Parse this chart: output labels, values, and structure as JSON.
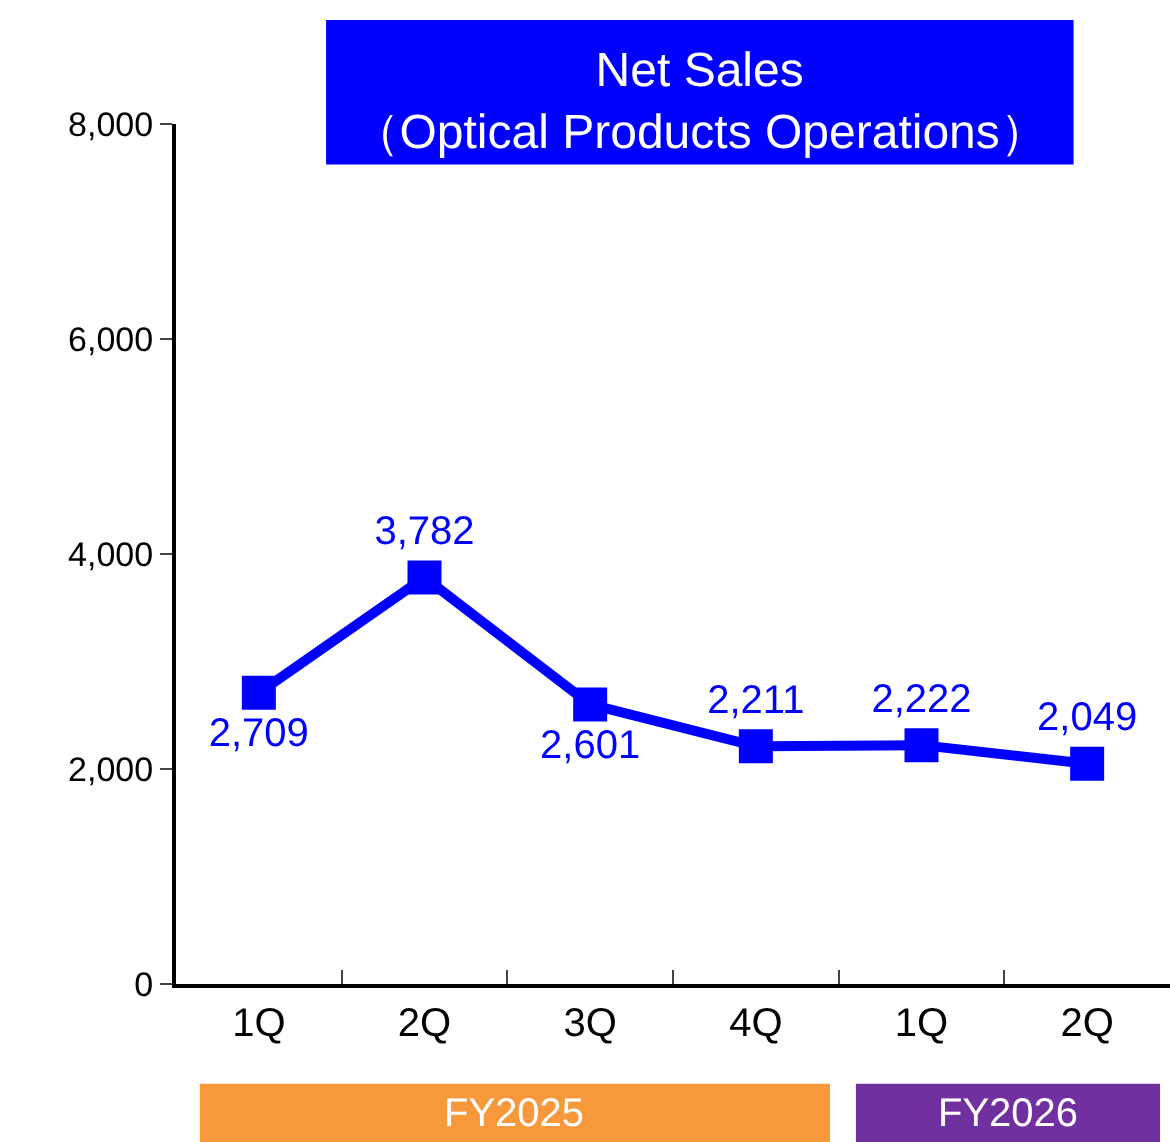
{
  "chart_data": {
    "type": "line",
    "title": "Net Sales",
    "subtitle": "（Optical Products Operations）",
    "categories": [
      "1Q",
      "2Q",
      "3Q",
      "4Q",
      "1Q",
      "2Q"
    ],
    "series": [
      {
        "color": "#0000ff",
        "values": [
          2709,
          3782,
          2601,
          2211,
          2222,
          2049
        ],
        "value_labels": [
          "2,709",
          "3,782",
          "2,601",
          "2,211",
          "2,222",
          "2,049"
        ]
      }
    ],
    "ylim": [
      0,
      8000
    ],
    "yticks": [
      0,
      {
        "value": 2000,
        "label": "2,000"
      },
      {
        "value": 4000,
        "label": "4,000"
      },
      {
        "value": 6000,
        "label": "6,000"
      },
      {
        "value": 8000,
        "label": "8,000"
      }
    ],
    "annotations": [
      "FY2025",
      "FY2026"
    ],
    "grid": false,
    "marker": "square",
    "line_style": "solid"
  }
}
